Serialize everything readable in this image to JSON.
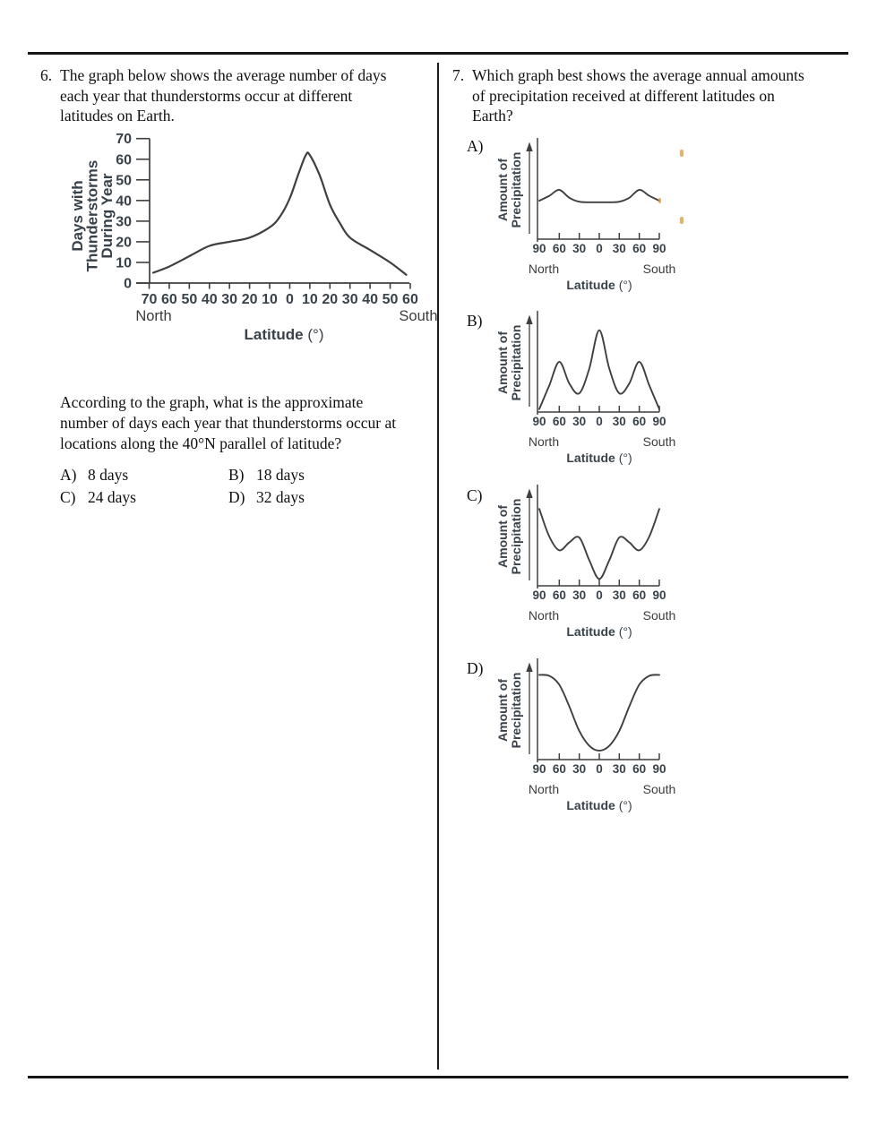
{
  "document": {
    "q6": {
      "number": "6.",
      "prompt_lines": [
        "The graph below shows the average number of days",
        "each year that thunderstorms occur at different",
        "latitudes on Earth."
      ],
      "question_lines": [
        "According to the graph, what is the approximate",
        "number of days each year that thunderstorms occur at",
        "locations along the 40°N parallel of latitude?"
      ],
      "options": [
        {
          "label": "A)",
          "text": "8 days"
        },
        {
          "label": "B)",
          "text": "18 days"
        },
        {
          "label": "C)",
          "text": "24 days"
        },
        {
          "label": "D)",
          "text": "32 days"
        }
      ]
    },
    "q7": {
      "number": "7.",
      "prompt_lines": [
        "Which graph best shows the average annual amounts",
        "of precipitation received at different latitudes on",
        "Earth?"
      ]
    }
  },
  "colors": {
    "chart_ink": "#3f3f3f",
    "chart_text": "#39424b",
    "body_text": "#101010",
    "rule": "#161616",
    "artifact_speck": "#dd9e3f"
  },
  "chart_data": [
    {
      "id": "thunderstorm-days",
      "type": "line",
      "ylabel": "Days with Thunderstorms During Year",
      "ylabel_lines": [
        "Days with",
        "Thunderstorms",
        "During Year"
      ],
      "xlabel": "Latitude (°)",
      "y_ticks": [
        0,
        10,
        20,
        30,
        40,
        50,
        60,
        70
      ],
      "ylim": [
        0,
        70
      ],
      "x_tick_labels": [
        "70",
        "60",
        "50",
        "40",
        "30",
        "20",
        "10",
        "0",
        "10",
        "20",
        "30",
        "40",
        "50",
        "60"
      ],
      "x_axis_note_left": "North",
      "x_axis_note_right": "South",
      "x_lat_north_negative": [
        -68,
        -60,
        -50,
        -40,
        -30,
        -20,
        -10,
        -5,
        0,
        4,
        8,
        10,
        15,
        20,
        25,
        30,
        40,
        50,
        58
      ],
      "y_days": [
        5,
        8,
        13,
        18,
        20,
        22,
        27,
        32,
        41,
        52,
        62,
        62,
        52,
        38,
        29,
        22,
        16,
        10,
        4
      ]
    },
    {
      "id": "precipitation-A",
      "option": "A)",
      "type": "line",
      "ylabel": "Amount of Precipitation",
      "ylabel_lines": [
        "Amount of",
        "Precipitation"
      ],
      "xlabel": "Latitude (°)",
      "x_tick_labels": [
        "90",
        "60",
        "30",
        "0",
        "30",
        "60",
        "90"
      ],
      "x_axis_note_left": "North",
      "x_axis_note_right": "South",
      "x_lat_north_negative": [
        -90,
        -75,
        -60,
        -45,
        -30,
        -15,
        0,
        15,
        30,
        45,
        60,
        75,
        90
      ],
      "values_relative_0_10": [
        3.9,
        4.4,
        5.0,
        4.2,
        3.8,
        3.75,
        3.75,
        3.75,
        3.8,
        4.2,
        5.0,
        4.4,
        3.9
      ]
    },
    {
      "id": "precipitation-B",
      "option": "B)",
      "type": "line",
      "ylabel": "Amount of Precipitation",
      "ylabel_lines": [
        "Amount of",
        "Precipitation"
      ],
      "xlabel": "Latitude (°)",
      "x_tick_labels": [
        "90",
        "60",
        "30",
        "0",
        "30",
        "60",
        "90"
      ],
      "x_axis_note_left": "North",
      "x_axis_note_right": "South",
      "x_lat_north_negative": [
        -90,
        -75,
        -60,
        -45,
        -30,
        -15,
        0,
        15,
        30,
        45,
        60,
        75,
        90
      ],
      "values_relative_0_10": [
        0.3,
        2.7,
        5.1,
        2.9,
        1.9,
        4.4,
        8.3,
        4.4,
        1.9,
        2.9,
        5.1,
        2.7,
        0.3
      ]
    },
    {
      "id": "precipitation-C",
      "option": "C)",
      "type": "line",
      "ylabel": "Amount of Precipitation",
      "ylabel_lines": [
        "Amount of",
        "Precipitation"
      ],
      "xlabel": "Latitude (°)",
      "x_tick_labels": [
        "90",
        "60",
        "30",
        "0",
        "30",
        "60",
        "90"
      ],
      "x_axis_note_left": "North",
      "x_axis_note_right": "South",
      "x_lat_north_negative": [
        -90,
        -75,
        -60,
        -45,
        -30,
        -15,
        0,
        15,
        30,
        45,
        60,
        75,
        90
      ],
      "values_relative_0_10": [
        7.8,
        5.0,
        3.6,
        4.4,
        4.9,
        2.6,
        0.7,
        2.6,
        4.9,
        4.4,
        3.6,
        5.0,
        7.8
      ]
    },
    {
      "id": "precipitation-D",
      "option": "D)",
      "type": "line",
      "ylabel": "Amount of Precipitation",
      "ylabel_lines": [
        "Amount of",
        "Precipitation"
      ],
      "xlabel": "Latitude (°)",
      "x_tick_labels": [
        "90",
        "60",
        "30",
        "0",
        "30",
        "60",
        "90"
      ],
      "x_axis_note_left": "North",
      "x_axis_note_right": "South",
      "x_lat_north_negative": [
        -90,
        -75,
        -60,
        -45,
        -30,
        -15,
        0,
        15,
        30,
        45,
        60,
        75,
        90
      ],
      "values_relative_0_10": [
        8.6,
        8.5,
        7.6,
        5.4,
        2.9,
        1.4,
        0.9,
        1.4,
        2.9,
        5.4,
        7.6,
        8.5,
        8.6
      ]
    }
  ]
}
